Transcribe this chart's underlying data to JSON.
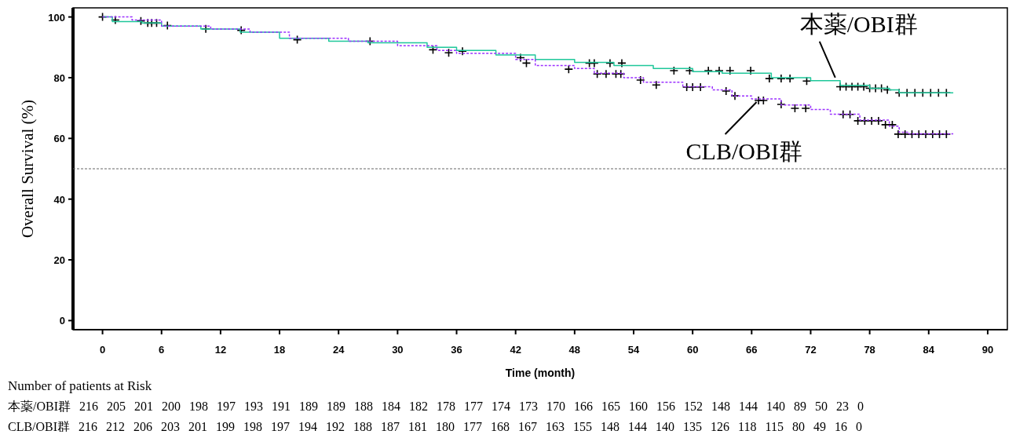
{
  "chart_data": {
    "type": "step",
    "xlabel": "Time (month)",
    "ylabel": "Overall Survival (%)",
    "xlim": [
      -3,
      92
    ],
    "ylim": [
      -3,
      103
    ],
    "xticks": [
      0,
      6,
      12,
      18,
      24,
      30,
      36,
      42,
      48,
      54,
      60,
      66,
      72,
      78,
      84,
      90
    ],
    "yticks": [
      0,
      20,
      40,
      60,
      80,
      100
    ],
    "grid": false,
    "legend": false,
    "series": [
      {
        "name": "本薬/OBI群",
        "color": "#1fc79a",
        "line_style": "solid",
        "x": [
          0,
          1,
          4,
          6,
          10,
          14,
          18,
          23,
          27,
          33,
          36,
          40,
          44,
          48,
          52,
          56,
          60,
          63,
          68,
          72,
          75,
          78,
          80,
          81,
          86.5
        ],
        "values": [
          100,
          98.5,
          98,
          97,
          96,
          95,
          93,
          92,
          91.5,
          90,
          89,
          87.5,
          86,
          85,
          84,
          83,
          82,
          81.5,
          80,
          79,
          77.5,
          76.5,
          76,
          75,
          75
        ]
      },
      {
        "name": "CLB/OBI群",
        "color": "#9b30ff",
        "line_style": "dashed",
        "x": [
          0,
          3,
          6,
          11,
          15,
          19,
          25,
          30,
          34,
          36,
          42,
          44,
          48,
          50,
          53,
          55,
          59,
          62,
          64,
          66,
          69,
          72,
          74,
          77,
          80,
          81,
          82,
          86.5
        ],
        "values": [
          100,
          99,
          97,
          96,
          95,
          93,
          92,
          90.5,
          89,
          88,
          86,
          84,
          83,
          81.5,
          80,
          78.5,
          77,
          76,
          74,
          73,
          71,
          69.5,
          68,
          66,
          64,
          62,
          61.5,
          61.5
        ]
      },
      {
        "type": "scatter",
        "color": "#000000",
        "marker": "cross",
        "x": [
          0,
          1.3,
          3.9,
          4.6,
          5,
          5.5,
          6.6,
          10.5,
          14.1,
          19.8,
          27.2,
          33.6,
          35.2,
          36.6,
          42.5,
          49.5,
          50,
          51.6,
          52.8,
          58.1,
          59.7,
          61.6,
          62.7,
          63.8,
          65.9,
          67.8,
          69,
          69.9,
          71.6,
          75,
          75.6,
          76.2,
          76.8,
          77.4,
          78,
          78.6,
          79.2,
          79.8,
          81,
          81.8,
          82.6,
          83.4,
          84.2,
          85,
          85.8,
          43.1,
          47.4,
          50.3,
          51.2,
          52.2,
          52.7,
          54.7,
          56.3,
          59.4,
          60,
          60.8,
          63.4,
          64.3,
          66.7,
          67.2,
          69,
          70.4,
          71.5,
          75.3,
          76,
          76.8,
          77.5,
          78.2,
          78.9,
          79.6,
          80.3,
          80.9,
          81.6,
          82.3,
          83,
          83.7,
          84.4,
          85.1,
          85.8
        ],
        "values": [
          100,
          99,
          98.7,
          98,
          98,
          98,
          97.2,
          96.1,
          95.6,
          92.5,
          92,
          89.2,
          88.2,
          88.7,
          86.6,
          84.8,
          84.8,
          84.8,
          84.8,
          82.3,
          82.3,
          82.3,
          82.3,
          82.3,
          82.3,
          79.7,
          79.7,
          79.7,
          78.9,
          77,
          77,
          77,
          77,
          77,
          76.5,
          76.5,
          76.5,
          76,
          75,
          75,
          75,
          75,
          75,
          75,
          75,
          84.8,
          82.8,
          81.2,
          81.2,
          81.2,
          81.2,
          79.2,
          77.6,
          76.9,
          76.9,
          76.9,
          75.6,
          74,
          72.5,
          72.5,
          71.2,
          69.9,
          69.9,
          67.9,
          67.9,
          65.8,
          65.8,
          65.8,
          65.8,
          64.5,
          64.5,
          61.4,
          61.4,
          61.4,
          61.4,
          61.4,
          61.4,
          61.4,
          61.4
        ]
      }
    ],
    "ref_lines": [
      {
        "axis": "y",
        "value": 50,
        "color": "#666666",
        "line_style": "dashed"
      }
    ],
    "annotations": [
      "Number of patients at Risk",
      "本薬/OBI群 216 205 201 200 198 197 193 191 189 189 188 184 182 178 177 174 173 170 166 165 160 156 152 148 144 140 89 50 23 0",
      "CLB/OBI群 216 212 206 203 201 199 198 197 194 192 188 187 181 180 177 168 167 163 155 148 144 140 135 126 118 115 80 49 16 0"
    ]
  }
}
